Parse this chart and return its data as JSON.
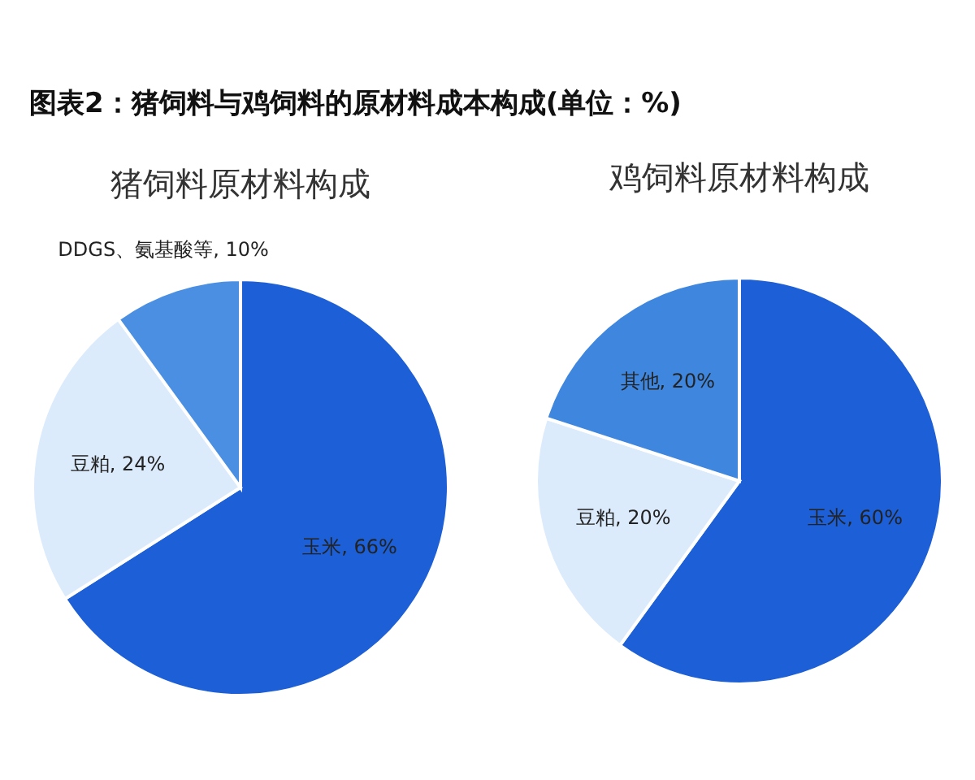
{
  "chart_data": [
    {
      "type": "other",
      "title": "图表2：猪饲料与鸡饲料的原材料成本构成(单位：%)"
    },
    {
      "type": "pie",
      "title": "猪饲料原材料构成",
      "categories": [
        "玉米",
        "豆粕",
        "DDGS、氨基酸等"
      ],
      "values": [
        66,
        24,
        10
      ],
      "colors": [
        "#1c5fd6",
        "#dcebfb",
        "#4b8fe2"
      ],
      "value_labels": [
        "66%",
        "24%",
        "10%"
      ]
    },
    {
      "type": "pie",
      "title": "鸡饲料原材料构成",
      "categories": [
        "玉米",
        "豆粕",
        "其他"
      ],
      "values": [
        60,
        20,
        20
      ],
      "colors": [
        "#1c5fd6",
        "#dcebfb",
        "#3f86de"
      ],
      "value_labels": [
        "60%",
        "20%",
        "20%"
      ]
    }
  ]
}
